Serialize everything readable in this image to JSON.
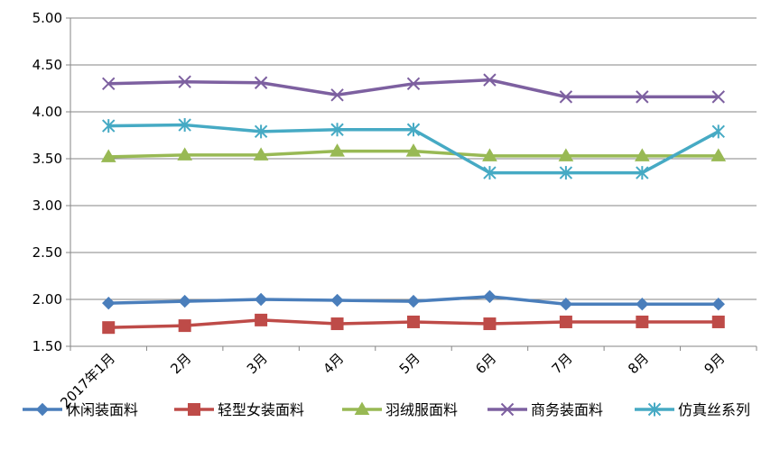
{
  "chart_data": {
    "type": "line",
    "categories": [
      "2017年1月",
      "2月",
      "3月",
      "4月",
      "5月",
      "6月",
      "7月",
      "8月",
      "9月"
    ],
    "ylim": [
      1.5,
      5.0
    ],
    "yticks": [
      "1.50",
      "2.00",
      "2.50",
      "3.00",
      "3.50",
      "4.00",
      "4.50",
      "5.00"
    ],
    "grid": true,
    "legend_position": "bottom",
    "series": [
      {
        "name": "休闲装面料",
        "color": "#4a7ebb",
        "marker": "diamond",
        "values": [
          1.96,
          1.98,
          2.0,
          1.99,
          1.98,
          2.03,
          1.95,
          1.95,
          1.95
        ]
      },
      {
        "name": "轻型女装面料",
        "color": "#be4b48",
        "marker": "square",
        "values": [
          1.7,
          1.72,
          1.78,
          1.74,
          1.76,
          1.74,
          1.76,
          1.76,
          1.76
        ]
      },
      {
        "name": "羽绒服面料",
        "color": "#98b954",
        "marker": "triangle",
        "values": [
          3.52,
          3.54,
          3.54,
          3.58,
          3.58,
          3.53,
          3.53,
          3.53,
          3.53
        ]
      },
      {
        "name": "商务装面料",
        "color": "#7d60a0",
        "marker": "x",
        "values": [
          4.3,
          4.32,
          4.31,
          4.18,
          4.3,
          4.34,
          4.16,
          4.16,
          4.16
        ]
      },
      {
        "name": "仿真丝系列",
        "color": "#46aac4",
        "marker": "star",
        "values": [
          3.85,
          3.86,
          3.79,
          3.81,
          3.81,
          3.35,
          3.35,
          3.35,
          3.79
        ]
      }
    ]
  }
}
